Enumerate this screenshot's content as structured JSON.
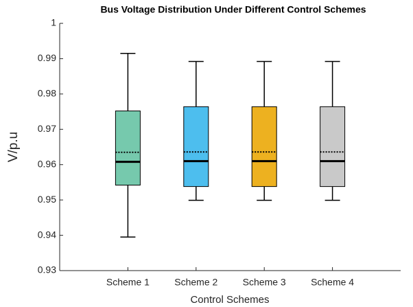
{
  "chart_data": {
    "type": "box",
    "title": "Bus Voltage Distribution Under Different Control Schemes",
    "x_label": "Control Schemes",
    "y_label": "V/p.u",
    "categories": [
      "Scheme 1",
      "Scheme 2",
      "Scheme 3",
      "Scheme 4"
    ],
    "colors": [
      "#76c9ad",
      "#4dbeee",
      "#edb120",
      "#c9c9c9"
    ],
    "boxes": [
      {
        "min": 0.9395,
        "q1": 0.9542,
        "median": 0.9608,
        "mean": 0.9635,
        "q3": 0.9752,
        "max": 0.9915
      },
      {
        "min": 0.9499,
        "q1": 0.9538,
        "median": 0.961,
        "mean": 0.9636,
        "q3": 0.9764,
        "max": 0.9892
      },
      {
        "min": 0.9499,
        "q1": 0.9538,
        "median": 0.961,
        "mean": 0.9636,
        "q3": 0.9764,
        "max": 0.9892
      },
      {
        "min": 0.9499,
        "q1": 0.9538,
        "median": 0.961,
        "mean": 0.9636,
        "q3": 0.9764,
        "max": 0.9892
      }
    ],
    "ylim": [
      0.93,
      1
    ],
    "yticks": [
      0.93,
      0.94,
      0.95,
      0.96,
      0.97,
      0.98,
      0.99,
      1
    ],
    "grid": false
  }
}
